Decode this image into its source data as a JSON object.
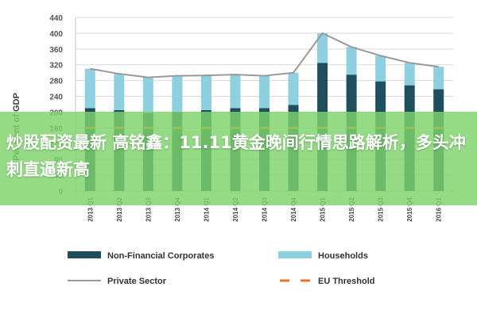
{
  "chart_data": {
    "type": "bar",
    "title": "",
    "xlabel": "",
    "ylabel": "Per Cent of GDP",
    "ylim": [
      0,
      440
    ],
    "yticks": [
      0,
      40,
      80,
      120,
      160,
      200,
      240,
      280,
      320,
      360,
      400,
      440
    ],
    "grid": true,
    "legend_position": "bottom",
    "categories": [
      "2013 Q1",
      "2013 Q2",
      "2013 Q3",
      "2013 Q4",
      "2014 Q1",
      "2014 Q2",
      "2014 Q3",
      "2014 Q4",
      "2015 Q1",
      "2015 Q2",
      "2015 Q3",
      "2015 Q4",
      "2016 Q1"
    ],
    "series": [
      {
        "name": "Non-Financial Corporates",
        "kind": "stacked-bar",
        "color": "#1f4e5f",
        "values": [
          210,
          205,
          198,
          200,
          205,
          210,
          210,
          218,
          325,
          295,
          278,
          268,
          258
        ]
      },
      {
        "name": "Households",
        "kind": "stacked-bar",
        "color": "#8ecfe0",
        "values": [
          100,
          92,
          90,
          92,
          88,
          85,
          82,
          82,
          75,
          70,
          65,
          57,
          57
        ]
      },
      {
        "name": "Private Sector",
        "kind": "line",
        "color": "#999999",
        "values": [
          310,
          297,
          288,
          292,
          293,
          295,
          292,
          300,
          400,
          365,
          343,
          325,
          315
        ]
      },
      {
        "name": "EU Threshold",
        "kind": "dashed-line",
        "color": "#e8742a",
        "values": [
          160,
          160,
          160,
          160,
          160,
          160,
          160,
          160,
          160,
          160,
          160,
          160,
          160
        ]
      }
    ]
  },
  "overlay": {
    "color": "#7ed36a",
    "headline": "炒股配资最新 高铭鑫：11.11黄金晚间行情思路解析，多头冲刺直逼新高"
  }
}
